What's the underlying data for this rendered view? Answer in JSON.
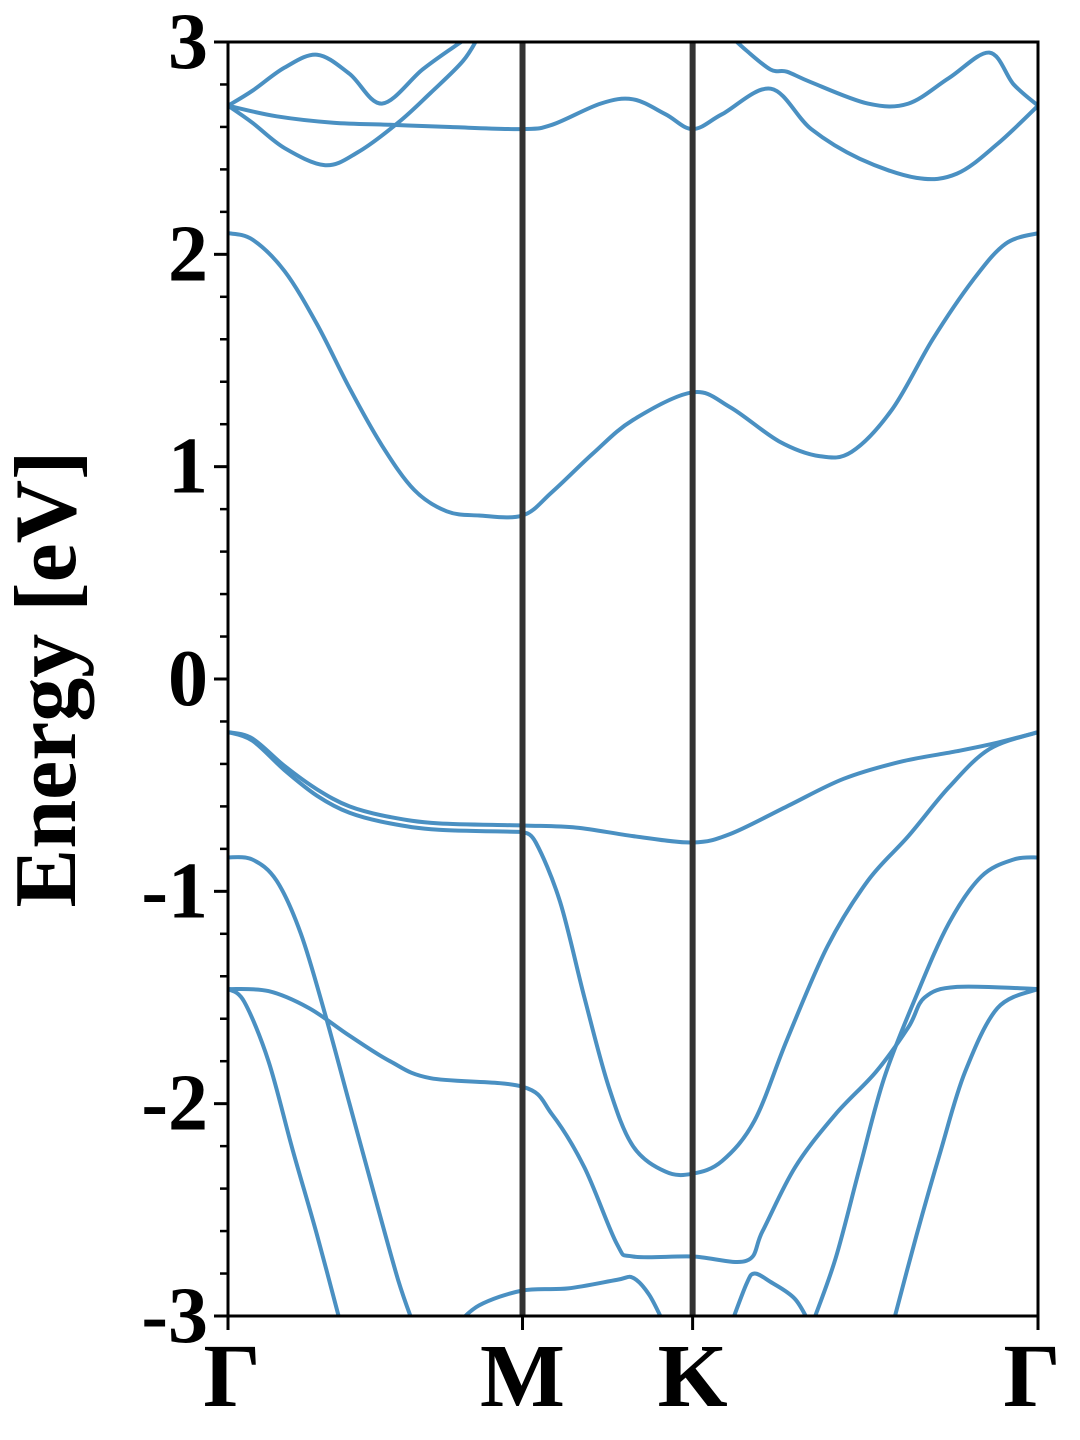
{
  "chart_data": {
    "type": "line",
    "title": "",
    "xlabel": "",
    "ylabel": "Energy [eV]",
    "ylim": [
      -3,
      3
    ],
    "y_ticks": [
      "3",
      "2",
      "1",
      "0",
      "-1",
      "-2",
      "-3"
    ],
    "y_tick_values": [
      3,
      2,
      1,
      0,
      -1,
      -2,
      -3
    ],
    "k_points": [
      {
        "label": "Γ",
        "x": 0.0
      },
      {
        "label": "M",
        "x": 0.3636
      },
      {
        "label": "K",
        "x": 0.5736
      },
      {
        "label": "Γ",
        "x": 1.0
      }
    ],
    "grid": false,
    "colors": {
      "band": "#4a90c2",
      "kline": "#333333",
      "axis": "#000000"
    },
    "series": [
      {
        "values": [
          [
            0.0,
            2.7
          ],
          [
            0.03,
            2.77
          ],
          [
            0.07,
            2.88
          ],
          [
            0.11,
            2.94
          ],
          [
            0.15,
            2.85
          ],
          [
            0.19,
            2.71
          ],
          [
            0.24,
            2.87
          ],
          [
            0.28,
            2.98
          ],
          [
            0.3,
            3.03
          ]
        ]
      },
      {
        "values": [
          [
            0.0,
            2.7
          ],
          [
            0.03,
            2.62
          ],
          [
            0.07,
            2.5
          ],
          [
            0.12,
            2.42
          ],
          [
            0.16,
            2.48
          ],
          [
            0.21,
            2.62
          ],
          [
            0.25,
            2.76
          ],
          [
            0.29,
            2.91
          ],
          [
            0.31,
            3.03
          ]
        ]
      },
      {
        "values": [
          [
            0.0,
            2.7
          ],
          [
            0.06,
            2.65
          ],
          [
            0.13,
            2.62
          ],
          [
            0.2,
            2.61
          ],
          [
            0.27,
            2.6
          ],
          [
            0.3636,
            2.59
          ],
          [
            0.4,
            2.61
          ],
          [
            0.46,
            2.71
          ],
          [
            0.5,
            2.73
          ],
          [
            0.54,
            2.66
          ],
          [
            0.5736,
            2.59
          ],
          [
            0.61,
            2.66
          ],
          [
            0.67,
            2.78
          ],
          [
            0.72,
            2.59
          ],
          [
            0.78,
            2.45
          ],
          [
            0.85,
            2.36
          ],
          [
            0.9,
            2.38
          ],
          [
            0.95,
            2.52
          ],
          [
            1.0,
            2.7
          ]
        ]
      },
      {
        "values": [
          [
            0.3636,
            2.59
          ],
          [
            0.3636,
            2.59
          ]
        ]
      },
      {
        "values": [
          [
            0.62,
            3.03
          ],
          [
            0.64,
            2.96
          ],
          [
            0.67,
            2.87
          ],
          [
            0.69,
            2.86
          ],
          [
            0.72,
            2.81
          ],
          [
            0.79,
            2.71
          ],
          [
            0.84,
            2.71
          ],
          [
            0.89,
            2.83
          ],
          [
            0.94,
            2.95
          ],
          [
            0.97,
            2.8
          ],
          [
            1.0,
            2.7
          ]
        ]
      },
      {
        "values": [
          [
            0.0,
            2.1
          ],
          [
            0.03,
            2.07
          ],
          [
            0.07,
            1.92
          ],
          [
            0.11,
            1.67
          ],
          [
            0.15,
            1.37
          ],
          [
            0.19,
            1.1
          ],
          [
            0.23,
            0.89
          ],
          [
            0.27,
            0.79
          ],
          [
            0.31,
            0.77
          ],
          [
            0.3636,
            0.77
          ],
          [
            0.4,
            0.88
          ],
          [
            0.45,
            1.06
          ],
          [
            0.5,
            1.22
          ],
          [
            0.5736,
            1.35
          ],
          [
            0.62,
            1.28
          ],
          [
            0.68,
            1.12
          ],
          [
            0.73,
            1.05
          ],
          [
            0.77,
            1.07
          ],
          [
            0.82,
            1.27
          ],
          [
            0.87,
            1.6
          ],
          [
            0.92,
            1.88
          ],
          [
            0.96,
            2.05
          ],
          [
            1.0,
            2.1
          ]
        ]
      },
      {
        "values": [
          [
            0.0,
            -0.25
          ],
          [
            0.03,
            -0.28
          ],
          [
            0.07,
            -0.41
          ],
          [
            0.11,
            -0.52
          ],
          [
            0.15,
            -0.6
          ],
          [
            0.2,
            -0.65
          ],
          [
            0.26,
            -0.68
          ],
          [
            0.3636,
            -0.69
          ],
          [
            0.43,
            -0.7
          ],
          [
            0.5,
            -0.74
          ],
          [
            0.5736,
            -0.77
          ],
          [
            0.62,
            -0.73
          ],
          [
            0.69,
            -0.6
          ],
          [
            0.76,
            -0.47
          ],
          [
            0.83,
            -0.39
          ],
          [
            0.9,
            -0.34
          ],
          [
            0.95,
            -0.3
          ],
          [
            1.0,
            -0.25
          ]
        ]
      },
      {
        "values": [
          [
            0.0,
            -0.25
          ],
          [
            0.03,
            -0.29
          ],
          [
            0.07,
            -0.43
          ],
          [
            0.11,
            -0.55
          ],
          [
            0.15,
            -0.63
          ],
          [
            0.2,
            -0.68
          ],
          [
            0.26,
            -0.71
          ],
          [
            0.3636,
            -0.72
          ]
        ]
      },
      {
        "values": [
          [
            0.3636,
            -0.72
          ],
          [
            0.38,
            -0.77
          ],
          [
            0.41,
            -1.05
          ],
          [
            0.44,
            -1.5
          ],
          [
            0.47,
            -1.92
          ],
          [
            0.5,
            -2.2
          ],
          [
            0.54,
            -2.32
          ],
          [
            0.5736,
            -2.33
          ],
          [
            0.61,
            -2.27
          ],
          [
            0.65,
            -2.08
          ],
          [
            0.69,
            -1.7
          ],
          [
            0.74,
            -1.26
          ],
          [
            0.79,
            -0.95
          ],
          [
            0.84,
            -0.74
          ],
          [
            0.89,
            -0.51
          ],
          [
            0.94,
            -0.33
          ],
          [
            1.0,
            -0.25
          ]
        ]
      },
      {
        "values": [
          [
            0.0,
            -0.84
          ],
          [
            0.03,
            -0.85
          ],
          [
            0.06,
            -0.95
          ],
          [
            0.09,
            -1.2
          ],
          [
            0.12,
            -1.58
          ],
          [
            0.15,
            -2.0
          ],
          [
            0.18,
            -2.42
          ],
          [
            0.21,
            -2.83
          ],
          [
            0.23,
            -3.05
          ]
        ]
      },
      {
        "values": [
          [
            0.72,
            -3.05
          ],
          [
            0.75,
            -2.73
          ],
          [
            0.78,
            -2.3
          ],
          [
            0.81,
            -1.88
          ],
          [
            0.85,
            -1.49
          ],
          [
            0.89,
            -1.15
          ],
          [
            0.93,
            -0.93
          ],
          [
            0.97,
            -0.85
          ],
          [
            1.0,
            -0.84
          ]
        ]
      },
      {
        "values": [
          [
            0.0,
            -1.46
          ],
          [
            0.05,
            -1.47
          ],
          [
            0.1,
            -1.55
          ],
          [
            0.15,
            -1.68
          ],
          [
            0.2,
            -1.8
          ],
          [
            0.25,
            -1.88
          ],
          [
            0.3636,
            -1.92
          ],
          [
            0.4,
            -2.05
          ],
          [
            0.44,
            -2.3
          ],
          [
            0.48,
            -2.66
          ],
          [
            0.5,
            -2.72
          ],
          [
            0.5736,
            -2.72
          ],
          [
            0.64,
            -2.74
          ],
          [
            0.66,
            -2.6
          ],
          [
            0.7,
            -2.3
          ],
          [
            0.75,
            -2.05
          ],
          [
            0.8,
            -1.85
          ],
          [
            0.84,
            -1.64
          ],
          [
            0.86,
            -1.5
          ],
          [
            0.9,
            -1.45
          ],
          [
            1.0,
            -1.46
          ]
        ]
      },
      {
        "values": [
          [
            0.0,
            -1.46
          ],
          [
            0.02,
            -1.52
          ],
          [
            0.05,
            -1.8
          ],
          [
            0.08,
            -2.22
          ],
          [
            0.11,
            -2.62
          ],
          [
            0.14,
            -3.05
          ]
        ]
      },
      {
        "values": [
          [
            0.82,
            -3.05
          ],
          [
            0.85,
            -2.62
          ],
          [
            0.88,
            -2.22
          ],
          [
            0.91,
            -1.85
          ],
          [
            0.95,
            -1.55
          ],
          [
            1.0,
            -1.46
          ]
        ]
      },
      {
        "values": [
          [
            0.28,
            -3.05
          ],
          [
            0.31,
            -2.95
          ],
          [
            0.3636,
            -2.88
          ],
          [
            0.42,
            -2.87
          ],
          [
            0.48,
            -2.83
          ],
          [
            0.5,
            -2.82
          ],
          [
            0.52,
            -2.9
          ],
          [
            0.54,
            -3.05
          ]
        ]
      },
      {
        "values": [
          [
            0.62,
            -3.05
          ],
          [
            0.64,
            -2.85
          ],
          [
            0.65,
            -2.8
          ],
          [
            0.67,
            -2.84
          ],
          [
            0.7,
            -2.92
          ],
          [
            0.72,
            -3.05
          ]
        ]
      }
    ]
  }
}
